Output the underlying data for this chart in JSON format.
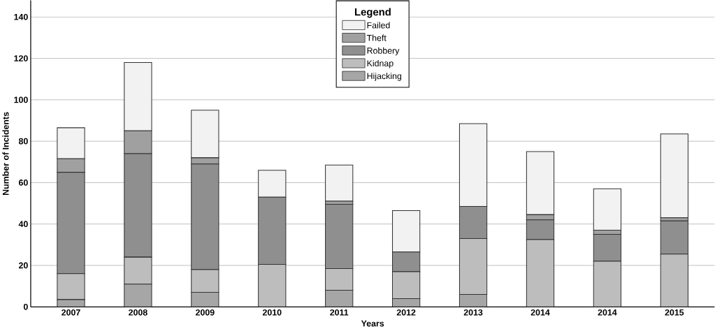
{
  "chart_data": {
    "type": "bar",
    "stacked": true,
    "xlabel": "Years",
    "ylabel": "Number of Incidents",
    "legend_title": "Legend",
    "categories": [
      "2007",
      "2008",
      "2009",
      "2010",
      "2011",
      "2012",
      "2013",
      "2014",
      "2014",
      "2015"
    ],
    "series": [
      {
        "name": "Hijacking",
        "color": "#a6a6a6",
        "values": [
          3.5,
          11,
          7,
          0,
          8,
          4,
          6,
          0,
          0,
          0
        ]
      },
      {
        "name": "Kidnap",
        "color": "#bdbdbd",
        "values": [
          12.5,
          13,
          11,
          20.5,
          10.5,
          13,
          27,
          32.5,
          22,
          25.5
        ]
      },
      {
        "name": "Robbery",
        "color": "#8f8f8f",
        "values": [
          49,
          50,
          51,
          32.5,
          31,
          9.5,
          15.5,
          9.5,
          13,
          16
        ]
      },
      {
        "name": "Theft",
        "color": "#a0a0a0",
        "values": [
          6.5,
          11,
          3,
          0,
          1.5,
          0,
          0,
          2.5,
          2,
          1.5
        ]
      },
      {
        "name": "Failed",
        "color": "#f2f2f2",
        "values": [
          15,
          33,
          23,
          13,
          17.5,
          20,
          40,
          30.5,
          20,
          40.5
        ]
      }
    ],
    "ylim": [
      0,
      148
    ],
    "yticks": [
      0,
      20,
      40,
      60,
      80,
      100,
      120,
      140
    ],
    "grid": "y",
    "legend": "top"
  }
}
